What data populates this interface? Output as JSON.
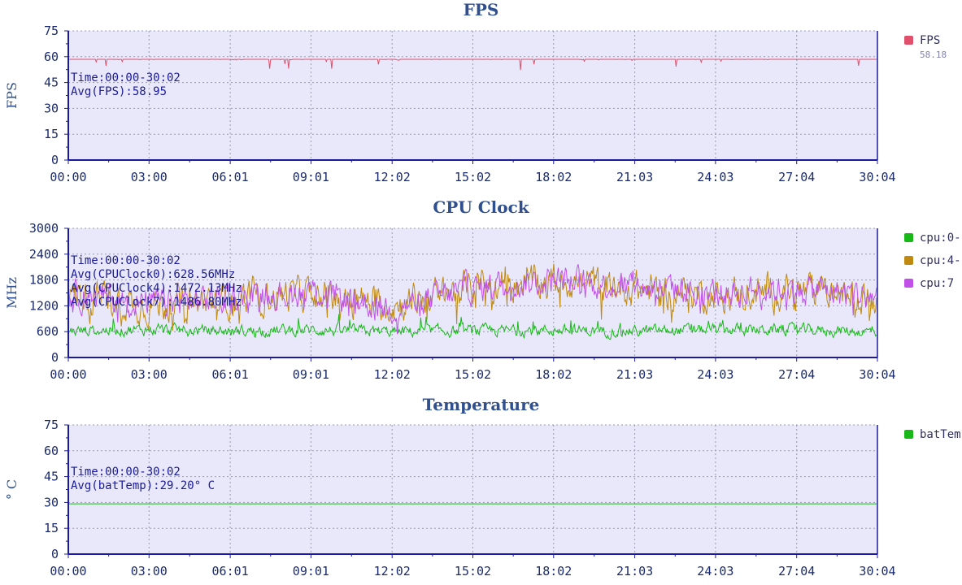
{
  "chart_data": [
    {
      "type": "line",
      "title": "FPS",
      "ylabel": "FPS",
      "ylim": [
        0,
        75
      ],
      "yticks": [
        "0",
        "15",
        "30",
        "45",
        "60",
        "75"
      ],
      "xticks": [
        "00:00",
        "03:00",
        "06:01",
        "09:01",
        "12:02",
        "15:02",
        "18:02",
        "21:03",
        "24:03",
        "27:04",
        "30:04"
      ],
      "grid": true,
      "legend_placement": "right",
      "annotation": [
        "Time:00:00-30:02",
        "Avg(FPS):58.95"
      ],
      "series": [
        {
          "name": "FPS",
          "color": "#e0506a",
          "legend_value": "58.18",
          "base": 58.95,
          "noise": 0.7,
          "jitter_prob": 0.02,
          "dip_depth": 7,
          "x": [
            "00:00",
            "03:00",
            "06:01",
            "09:01",
            "12:02",
            "15:02",
            "18:02",
            "21:03",
            "24:03",
            "27:04",
            "30:02"
          ],
          "values": [
            59,
            59,
            59,
            59,
            59,
            59,
            59,
            59,
            59,
            59,
            59
          ]
        }
      ]
    },
    {
      "type": "line",
      "title": "CPU Clock",
      "ylabel": "MHz",
      "ylim": [
        0,
        3000
      ],
      "yticks": [
        "0",
        "600",
        "1200",
        "1800",
        "2400",
        "3000"
      ],
      "xticks": [
        "00:00",
        "03:00",
        "06:01",
        "09:01",
        "12:02",
        "15:02",
        "18:02",
        "21:03",
        "24:03",
        "27:04",
        "30:04"
      ],
      "grid": true,
      "legend_placement": "right",
      "annotation": [
        "Time:00:00-30:02",
        "Avg(CPUClock0):628.56MHz",
        "Avg(CPUClock4):1472.13MHz",
        "Avg(CPUClock7):1486.80MHz"
      ],
      "series": [
        {
          "name": "cpu:0-",
          "color": "#18b818",
          "base": 628.56,
          "noise": 130,
          "jitter_prob": 0.05,
          "dip_depth": -300,
          "x": [
            "00:00",
            "03:00",
            "06:01",
            "09:01",
            "12:02",
            "15:02",
            "18:02",
            "21:03",
            "24:03",
            "27:04",
            "30:02"
          ],
          "values": [
            620,
            650,
            610,
            640,
            600,
            620,
            630,
            610,
            650,
            640,
            600
          ]
        },
        {
          "name": "cpu:4-",
          "color": "#c08a10",
          "base": 1472.13,
          "noise": 380,
          "jitter_prob": 0.08,
          "dip_depth": 500,
          "x": [
            "00:00",
            "03:00",
            "06:01",
            "09:01",
            "12:02",
            "15:02",
            "18:02",
            "21:03",
            "24:03",
            "27:04",
            "30:02"
          ],
          "values": [
            1500,
            1200,
            1350,
            1500,
            1200,
            1650,
            1800,
            1600,
            1450,
            1550,
            1400
          ]
        },
        {
          "name": "cpu:7",
          "color": "#c050e8",
          "base": 1486.8,
          "noise": 330,
          "jitter_prob": 0.08,
          "dip_depth": 400,
          "x": [
            "00:00",
            "03:00",
            "06:01",
            "09:01",
            "12:02",
            "15:02",
            "18:02",
            "21:03",
            "24:03",
            "27:04",
            "30:02"
          ],
          "values": [
            1500,
            1250,
            1400,
            1550,
            1150,
            1600,
            1800,
            1650,
            1500,
            1600,
            1450
          ]
        }
      ]
    },
    {
      "type": "line",
      "title": "Temperature",
      "ylabel": "° C",
      "ylim": [
        0,
        75
      ],
      "yticks": [
        "0",
        "15",
        "30",
        "45",
        "60",
        "75"
      ],
      "xticks": [
        "00:00",
        "03:00",
        "06:01",
        "09:01",
        "12:02",
        "15:02",
        "18:02",
        "21:03",
        "24:03",
        "27:04",
        "30:04"
      ],
      "grid": true,
      "legend_placement": "right",
      "annotation": [
        "Time:00:00-30:02",
        "Avg(batTemp):29.20° C"
      ],
      "series": [
        {
          "name": "batTem",
          "color": "#18b818",
          "base": 29.2,
          "noise": 0,
          "jitter_prob": 0,
          "dip_depth": 0,
          "x": [
            "00:00",
            "30:02"
          ],
          "values": [
            29.2,
            29.2
          ]
        }
      ]
    }
  ]
}
